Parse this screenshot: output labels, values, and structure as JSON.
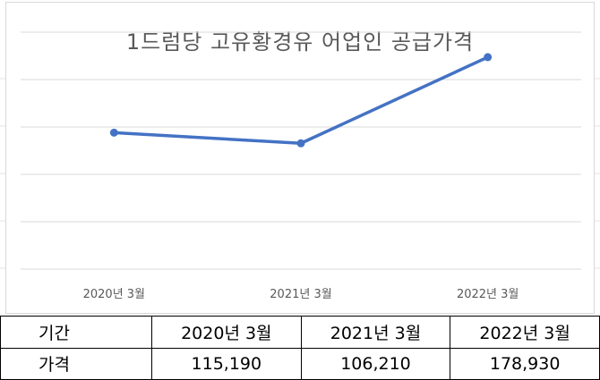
{
  "chart_data": {
    "type": "line",
    "title": "1드럼당 고유황경유 어업인 공급가격",
    "categories": [
      "2020년 3월",
      "2021년 3월",
      "2022년 3월"
    ],
    "series": [
      {
        "values": [
          115190,
          106210,
          178930
        ],
        "color": "#4472c4"
      }
    ],
    "ylim": [
      0,
      200000
    ],
    "grid": true,
    "legend": "none"
  },
  "table": {
    "row_labels": [
      "기간",
      "가격"
    ],
    "periods": [
      "2020년 3월",
      "2021년 3월",
      "2022년 3월"
    ],
    "prices": [
      "115,190",
      "106,210",
      "178,930"
    ]
  }
}
